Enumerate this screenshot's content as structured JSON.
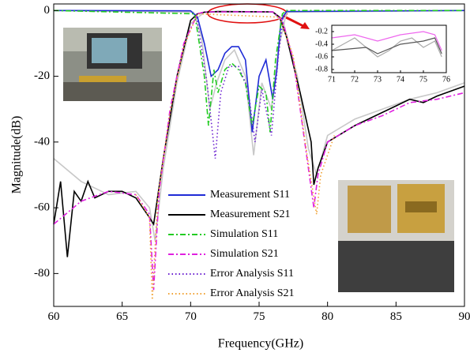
{
  "chart_data": [
    {
      "type": "line",
      "x_label": "Frequency(GHz)",
      "y_label": "Magnitude(dB)",
      "xlim": [
        60,
        90
      ],
      "xticks": [
        60,
        65,
        70,
        75,
        80,
        85,
        90
      ],
      "ylim": [
        -90,
        2
      ],
      "yticks": [
        0,
        -20,
        -40,
        -60,
        -80
      ],
      "series": [
        {
          "color": "#c8c8c8",
          "style": "solid",
          "x": [
            60,
            62,
            64,
            66,
            67,
            67.4,
            68,
            69,
            70,
            71,
            76,
            76.8,
            77.8,
            78.6,
            79.2,
            80,
            82,
            84,
            86,
            88,
            90
          ],
          "values": [
            -45,
            -52,
            -56,
            -55,
            -60,
            -70,
            -48,
            -22,
            -4,
            -0.5,
            -0.5,
            -4,
            -20,
            -42,
            -50,
            -38,
            -33,
            -30,
            -27,
            -25,
            -22
          ]
        },
        {
          "color": "#c8c8c8",
          "style": "solid",
          "x": [
            60,
            70.2,
            70.8,
            71.4,
            71.9,
            72.5,
            73.2,
            74,
            74.6,
            75.2,
            75.9,
            76.4,
            77,
            90
          ],
          "values": [
            0,
            -0.5,
            -8,
            -30,
            -22,
            -15,
            -12,
            -20,
            -44,
            -22,
            -30,
            -12,
            -0.5,
            0
          ]
        },
        {
          "name": "Measurement S11",
          "color": "#1f2bd6",
          "style": "solid",
          "x": [
            60,
            70,
            70.5,
            71,
            71.5,
            72,
            72.5,
            73,
            73.5,
            74,
            74.5,
            75,
            75.5,
            76,
            76.3,
            76.6,
            77,
            90
          ],
          "values": [
            0,
            -0.1,
            -2,
            -10,
            -20,
            -18,
            -13,
            -11,
            -11,
            -15,
            -37,
            -20,
            -15,
            -27,
            -18,
            -3,
            -0.3,
            0
          ]
        },
        {
          "name": "Measurement S21",
          "color": "#000000",
          "style": "solid",
          "x": [
            60,
            60.5,
            61,
            61.5,
            62,
            62.5,
            63,
            64,
            65,
            66,
            67,
            67.3,
            68,
            69,
            70,
            70.5,
            71,
            72,
            76,
            76.5,
            77,
            78,
            78.8,
            79,
            79.3,
            80,
            82,
            84,
            85,
            86,
            87,
            88,
            90
          ],
          "values": [
            -65,
            -52,
            -75,
            -55,
            -58,
            -52,
            -57,
            -55,
            -55,
            -57,
            -63,
            -65,
            -45,
            -20,
            -3,
            -1,
            -0.5,
            -0.3,
            -0.4,
            -2,
            -8,
            -25,
            -40,
            -53,
            -48,
            -40,
            -35,
            -31,
            -29,
            -27,
            -28,
            -26,
            -23
          ]
        },
        {
          "name": "Simulation S11",
          "color": "#22cc22",
          "style": "dashdot",
          "x": [
            60,
            70.3,
            71,
            71.3,
            71.7,
            72,
            72.5,
            73,
            73.5,
            74,
            74.5,
            75,
            75.5,
            75.8,
            76.2,
            76.7,
            77,
            90
          ],
          "values": [
            0,
            -1,
            -20,
            -35,
            -18,
            -25,
            -18,
            -16,
            -18,
            -22,
            -35,
            -23,
            -25,
            -37,
            -15,
            -1,
            0,
            0
          ]
        },
        {
          "name": "Simulation S21",
          "color": "#e020e0",
          "style": "dashdot",
          "x": [
            60,
            62,
            64,
            66,
            67,
            67.3,
            67.7,
            68.5,
            69.5,
            70.5,
            71,
            76,
            76.7,
            77.5,
            78.5,
            79,
            79.3,
            80,
            82,
            84,
            86,
            88,
            90
          ],
          "values": [
            -65,
            -58,
            -55,
            -56,
            -62,
            -85,
            -55,
            -30,
            -10,
            -1,
            -0.4,
            -0.4,
            -3,
            -15,
            -45,
            -60,
            -50,
            -40,
            -35,
            -32,
            -28,
            -27,
            -25
          ]
        },
        {
          "name": "Error Analysis S11",
          "color": "#6a1fd0",
          "style": "dotted",
          "x": [
            70.4,
            71.2,
            71.8,
            72.2,
            72.8,
            73.5,
            74.2,
            74.7,
            75.2,
            75.9,
            76.4,
            76.8
          ],
          "values": [
            -1,
            -22,
            -45,
            -25,
            -17,
            -17,
            -24,
            -40,
            -24,
            -38,
            -14,
            -1
          ]
        },
        {
          "name": "Error Analysis S21",
          "color": "#f0a030",
          "style": "dotted",
          "x": [
            66,
            67,
            67.2,
            67.6,
            68.5,
            69.5,
            70.5,
            76.5,
            77.5,
            78.5,
            79.2,
            79.5,
            80.5
          ],
          "values": [
            -56,
            -63,
            -88,
            -57,
            -31,
            -11,
            -1,
            -2,
            -14,
            -44,
            -62,
            -50,
            -38
          ]
        }
      ]
    },
    {
      "type": "line",
      "xlim": [
        71,
        76
      ],
      "xticks": [
        71,
        72,
        73,
        74,
        75,
        76
      ],
      "ylim": [
        -0.85,
        -0.1
      ],
      "yticks": [
        -0.2,
        -0.4,
        -0.6,
        -0.8
      ],
      "series": [
        {
          "color": "#ee66ee",
          "style": "solid",
          "x": [
            71,
            72,
            73,
            74,
            75,
            75.5,
            75.8
          ],
          "values": [
            -0.3,
            -0.25,
            -0.35,
            -0.25,
            -0.2,
            -0.25,
            -0.5
          ]
        },
        {
          "color": "#aaaaaa",
          "style": "solid",
          "x": [
            71,
            72,
            72.5,
            73,
            73.5,
            74,
            74.5,
            75,
            75.5,
            75.8
          ],
          "values": [
            -0.5,
            -0.3,
            -0.45,
            -0.6,
            -0.5,
            -0.35,
            -0.3,
            -0.45,
            -0.35,
            -0.6
          ]
        },
        {
          "color": "#555555",
          "style": "solid",
          "x": [
            71,
            72.5,
            73,
            74,
            75,
            75.5,
            75.8
          ],
          "values": [
            -0.5,
            -0.45,
            -0.55,
            -0.4,
            -0.35,
            -0.3,
            -0.55
          ]
        }
      ]
    }
  ]
}
